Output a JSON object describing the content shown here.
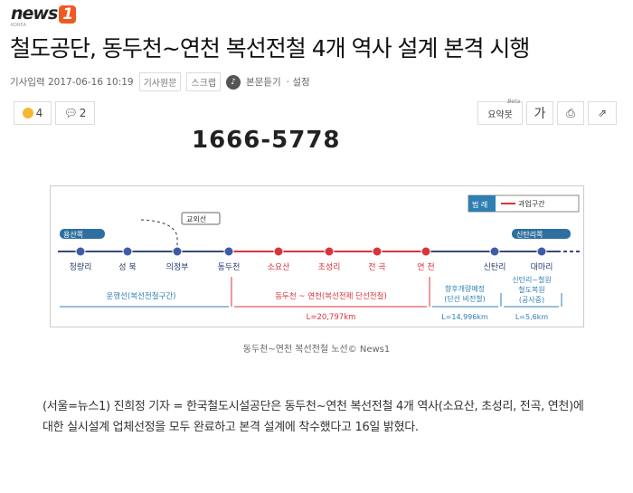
{
  "logo": {
    "text": "news",
    "one": "1",
    "sub": "KOREA"
  },
  "article": {
    "title": "철도공단, 동두천~연천 복선전철 4개 역사 설계 본격 시행",
    "date_label": "기사입력 2017-06-16 10:19",
    "original_button": "기사원문",
    "scrap_button": "스크랩",
    "listen": "본문듣기",
    "settings": "· 설정",
    "reactions": {
      "like_count": "4",
      "comment_count": "2"
    },
    "tools": {
      "summary": "요약봇",
      "beta": "Beta",
      "font": "가",
      "print": "print",
      "share": "share"
    },
    "phone": "1666-5778",
    "caption": "동두천~연천 복선전철 노선© News1",
    "body": "(서울=뉴스1) 진희정 기자 = 한국철도시설공단은 동두천~연천 복선전철 4개 역사(소요산, 초성리, 전곡, 연천)에 대한 실시설계 업체선정을 모두 완료하고 본격 설계에 착수했다고 16일 밝혔다."
  },
  "diagram": {
    "legend_title": "범 례",
    "legend_item": "과업구간",
    "left_direction": "용산쪽",
    "right_direction": "신탄리쪽",
    "branch": "교외선",
    "stations": [
      {
        "name": "청량리",
        "section": false
      },
      {
        "name": "성 북",
        "section": false
      },
      {
        "name": "의정부",
        "section": false
      },
      {
        "name": "동두천",
        "section": false
      },
      {
        "name": "소요산",
        "section": true
      },
      {
        "name": "초성리",
        "section": true
      },
      {
        "name": "전 곡",
        "section": true
      },
      {
        "name": "연 천",
        "section": true
      },
      {
        "name": "신탄리",
        "section": false
      },
      {
        "name": "대마리",
        "section": false
      }
    ],
    "segments": {
      "operating": "운행선(복선전철구간)",
      "project": "동두천 ~ 연천(복선전제 단선전철)",
      "project_length": "L=20,797km",
      "planned_1": "향후개량예정",
      "planned_2": "(단선 비전철)",
      "planned_length": "L=14,996km",
      "restore_1": "신탄리~철원",
      "restore_2": "철도복원",
      "restore_3": "(공사중)",
      "restore_length": "L=5,6km"
    },
    "colors": {
      "line": "#3a4a7a",
      "section": "#d9343a",
      "blue": "#2f7fb0"
    }
  }
}
